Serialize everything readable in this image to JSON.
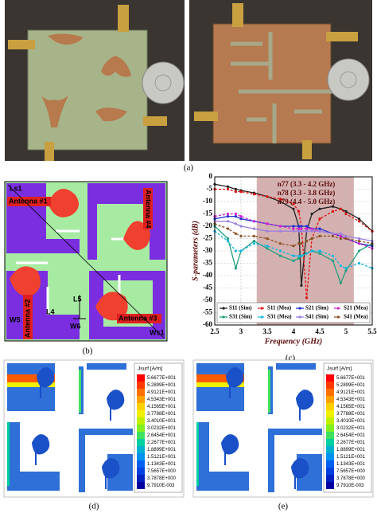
{
  "panels": {
    "a": {
      "label": "(a)"
    },
    "b": {
      "label": "(b)",
      "dimensions": [
        "Ls1",
        "Ws1",
        "L5",
        "L4",
        "W5",
        "W6"
      ],
      "antennas": [
        "Antenna #1",
        "Antenna #2",
        "Antenna #3",
        "Antenna #4"
      ]
    },
    "c": {
      "label": "(c)"
    },
    "d": {
      "label": "(d)",
      "legend_title": "Jsurf [A/m]",
      "legend_values": [
        "5.6677E+001",
        "5.2899E+001",
        "4.9121E+001",
        "4.5343E+001",
        "4.1565E+001",
        "3.7788E+001",
        "3.4010E+001",
        "3.0232E+001",
        "2.6454E+001",
        "2.2677E+001",
        "1.8899E+001",
        "1.5121E+001",
        "1.1343E+001",
        "7.5657E+000",
        "3.7878E+000",
        "9.7910E-003"
      ]
    },
    "e": {
      "label": "(e)",
      "legend_title": "Jsurf [A/m]",
      "legend_values": [
        "5.6677E+001",
        "5.2899E+001",
        "4.9121E+001",
        "4.5343E+001",
        "4.1565E+001",
        "3.7788E+001",
        "3.4010E+001",
        "3.0232E+001",
        "2.6454E+001",
        "2.2677E+001",
        "1.8899E+001",
        "1.5121E+001",
        "1.1343E+001",
        "7.5657E+000",
        "3.7878E+000",
        "9.7910E-003"
      ]
    }
  },
  "chart_data": {
    "type": "line",
    "x_label": "Frequency (GHz)",
    "y_label": "S-parameters (dB)",
    "annotations": [
      "n77 (3.3 - 4.2 GHz)",
      "n78 (3.3 - 3.8 GHz)",
      "n79 (4.4 - 5.0 GHz)"
    ],
    "band": [
      3.3,
      5.15
    ],
    "band_color": "#a0524f",
    "xlim": [
      2.5,
      5.5
    ],
    "xticks": [
      2.5,
      3.0,
      3.5,
      4.0,
      4.5,
      5.0,
      5.5
    ],
    "ylim": [
      -60,
      0
    ],
    "yticks": [
      -60,
      -55,
      -50,
      -45,
      -40,
      -35,
      -30,
      -25,
      -20,
      -15,
      -10,
      -5,
      0
    ],
    "grid": true,
    "x": [
      2.5,
      2.75,
      2.9,
      3.0,
      3.25,
      3.5,
      3.75,
      4.0,
      4.1,
      4.15,
      4.25,
      4.35,
      4.5,
      4.75,
      4.9,
      5.0,
      5.25,
      5.5
    ],
    "series": [
      {
        "name": "S11 (Sim)",
        "color": "#222222",
        "line_style": "solid",
        "values": [
          -3,
          -4,
          -5,
          -5.5,
          -6.5,
          -8,
          -10,
          -13,
          -20,
          -44,
          -22,
          -15,
          -13,
          -12,
          -13,
          -14,
          -17,
          -22
        ]
      },
      {
        "name": "S11 (Mea)",
        "color": "#e01010",
        "line_style": "dashed",
        "values": [
          -5,
          -5,
          -6,
          -6,
          -7,
          -8,
          -9,
          -11,
          -14,
          -20,
          -49,
          -25,
          -17,
          -14,
          -13,
          -15,
          -18,
          -22
        ]
      },
      {
        "name": "S21 (Sim)",
        "color": "#2030d0",
        "line_style": "solid",
        "values": [
          -17,
          -16,
          -16,
          -17,
          -18,
          -19,
          -20,
          -20,
          -20,
          -20,
          -20,
          -21,
          -21,
          -23,
          -24,
          -25,
          -27,
          -28
        ]
      },
      {
        "name": "S21 (Mea)",
        "color": "#d020d0",
        "line_style": "dashed",
        "values": [
          -16,
          -15,
          -15,
          -16,
          -18,
          -19,
          -20,
          -21,
          -21,
          -21,
          -21,
          -21,
          -22,
          -23,
          -24,
          -25,
          -27,
          -29
        ]
      },
      {
        "name": "S31 (Sim)",
        "color": "#20a080",
        "line_style": "solid",
        "values": [
          -20,
          -25,
          -37,
          -30,
          -26,
          -29,
          -32,
          -34,
          -33,
          -32,
          -31,
          -30,
          -31,
          -34,
          -43,
          -38,
          -30,
          -27
        ]
      },
      {
        "name": "S31 (Mea)",
        "color": "#10b8e0",
        "line_style": "dashed",
        "values": [
          -22,
          -26,
          -30,
          -30,
          -27,
          -28,
          -30,
          -32,
          -32,
          -32,
          -31,
          -30,
          -30,
          -32,
          -36,
          -37,
          -35,
          -37
        ]
      },
      {
        "name": "S41 (Sim)",
        "color": "#9a80e0",
        "line_style": "solid",
        "values": [
          -18,
          -18,
          -19,
          -20,
          -21,
          -22,
          -22,
          -22,
          -22,
          -22,
          -22,
          -22,
          -22,
          -23,
          -23,
          -24,
          -25,
          -26
        ]
      },
      {
        "name": "S41 (Mea)",
        "color": "#8a5020",
        "line_style": "dashed",
        "values": [
          -19,
          -21,
          -23,
          -24,
          -24,
          -25,
          -27,
          -28,
          -27,
          -27,
          -26,
          -25,
          -24,
          -24,
          -25,
          -25,
          -26,
          -27
        ]
      }
    ]
  }
}
